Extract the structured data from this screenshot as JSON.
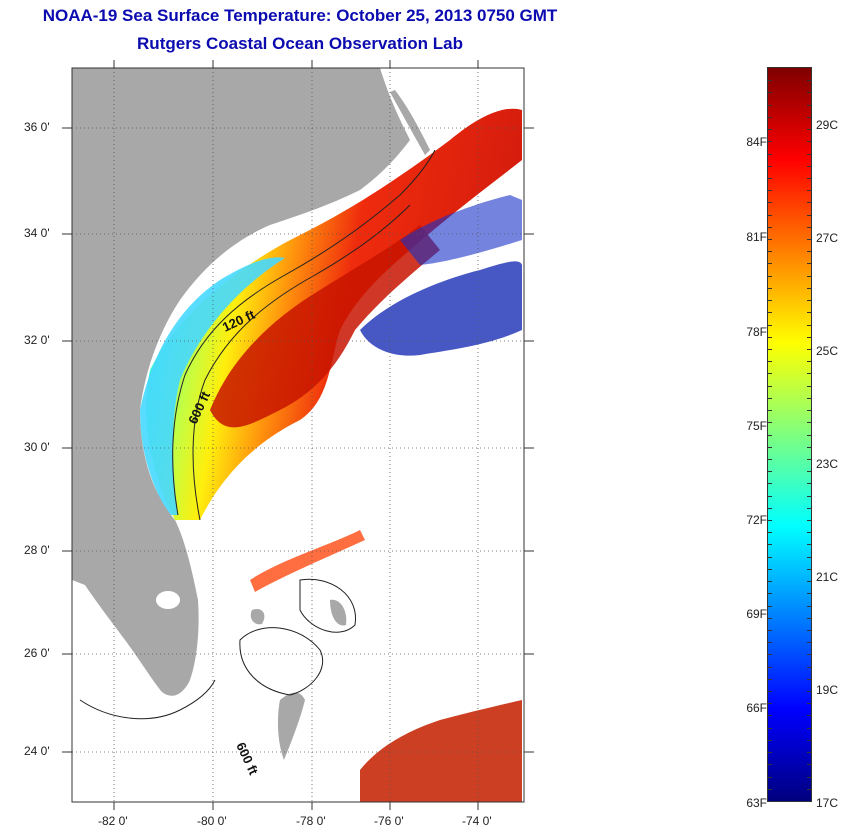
{
  "header": {
    "title": "NOAA-19 Sea Surface Temperature:  October 25, 2013 0750 GMT",
    "subtitle": "Rutgers Coastal Ocean Observation Lab"
  },
  "map": {
    "lat_labels": [
      "36 0'",
      "34 0'",
      "32 0'",
      "30 0'",
      "28 0'",
      "26 0'",
      "24 0'"
    ],
    "lon_labels": [
      "-82 0'",
      "-80 0'",
      "-78 0'",
      "-76 0'",
      "-74 0'"
    ],
    "contour_labels": [
      "120 ft",
      "600 ft",
      "600 ft"
    ],
    "colors": {
      "land": "#a8a8a8",
      "ocean": "#ffffff",
      "cloud": "#ffffff"
    }
  },
  "colorbar": {
    "fahrenheit_labels": [
      "84F",
      "81F",
      "78F",
      "75F",
      "72F",
      "69F",
      "66F",
      "63F"
    ],
    "celsius_labels": [
      "29C",
      "27C",
      "25C",
      "23C",
      "21C",
      "19C",
      "17C"
    ],
    "range_c": [
      17,
      30
    ],
    "colormap": [
      "#00007f",
      "#0000ff",
      "#007fff",
      "#00ffff",
      "#7fff7f",
      "#ffff00",
      "#ff7f00",
      "#ff0000",
      "#7f0000"
    ]
  }
}
